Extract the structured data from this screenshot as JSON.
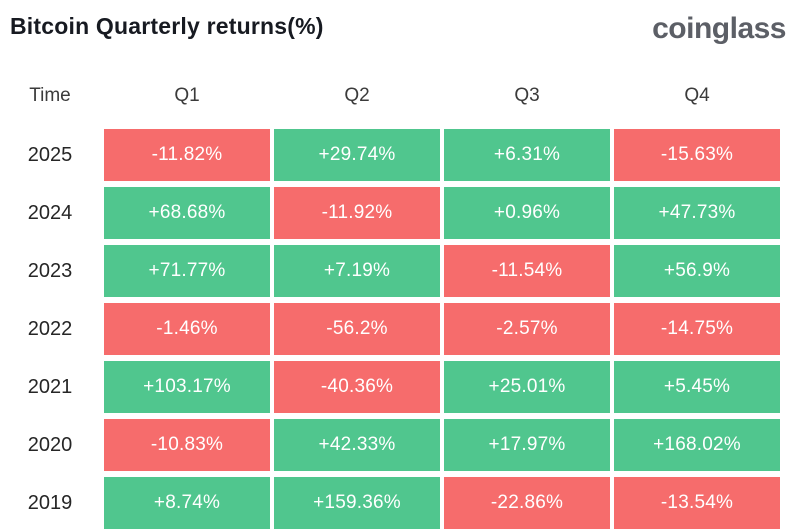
{
  "header": {
    "title": "Bitcoin Quarterly returns(%)",
    "logo": "coinglass"
  },
  "colors": {
    "positive": "#50C68E",
    "negative": "#F66C6C",
    "title_text": "#171A21",
    "logo_text": "#5C5F66",
    "cell_text": "#FFFFFF"
  },
  "table": {
    "columns": [
      "Time",
      "Q1",
      "Q2",
      "Q3",
      "Q4"
    ],
    "rows": [
      {
        "year": "2025",
        "values": [
          "-11.82%",
          "+29.74%",
          "+6.31%",
          "-15.63%"
        ]
      },
      {
        "year": "2024",
        "values": [
          "+68.68%",
          "-11.92%",
          "+0.96%",
          "+47.73%"
        ]
      },
      {
        "year": "2023",
        "values": [
          "+71.77%",
          "+7.19%",
          "-11.54%",
          "+56.9%"
        ]
      },
      {
        "year": "2022",
        "values": [
          "-1.46%",
          "-56.2%",
          "-2.57%",
          "-14.75%"
        ]
      },
      {
        "year": "2021",
        "values": [
          "+103.17%",
          "-40.36%",
          "+25.01%",
          "+5.45%"
        ]
      },
      {
        "year": "2020",
        "values": [
          "-10.83%",
          "+42.33%",
          "+17.97%",
          "+168.02%"
        ]
      },
      {
        "year": "2019",
        "values": [
          "+8.74%",
          "+159.36%",
          "-22.86%",
          "-13.54%"
        ]
      }
    ]
  },
  "chart_data": {
    "type": "heatmap",
    "title": "Bitcoin Quarterly returns(%)",
    "columns": [
      "Q1",
      "Q2",
      "Q3",
      "Q4"
    ],
    "rows": [
      "2025",
      "2024",
      "2023",
      "2022",
      "2021",
      "2020",
      "2019"
    ],
    "values_pct": [
      [
        -11.82,
        29.74,
        6.31,
        -15.63
      ],
      [
        68.68,
        -11.92,
        0.96,
        47.73
      ],
      [
        71.77,
        7.19,
        -11.54,
        56.9
      ],
      [
        -1.46,
        -56.2,
        -2.57,
        -14.75
      ],
      [
        103.17,
        -40.36,
        25.01,
        5.45
      ],
      [
        -10.83,
        42.33,
        17.97,
        168.02
      ],
      [
        8.74,
        159.36,
        -22.86,
        -13.54
      ]
    ],
    "legend_position": "none",
    "color_coding": {
      "positive": "#50C68E",
      "negative": "#F66C6C"
    }
  }
}
